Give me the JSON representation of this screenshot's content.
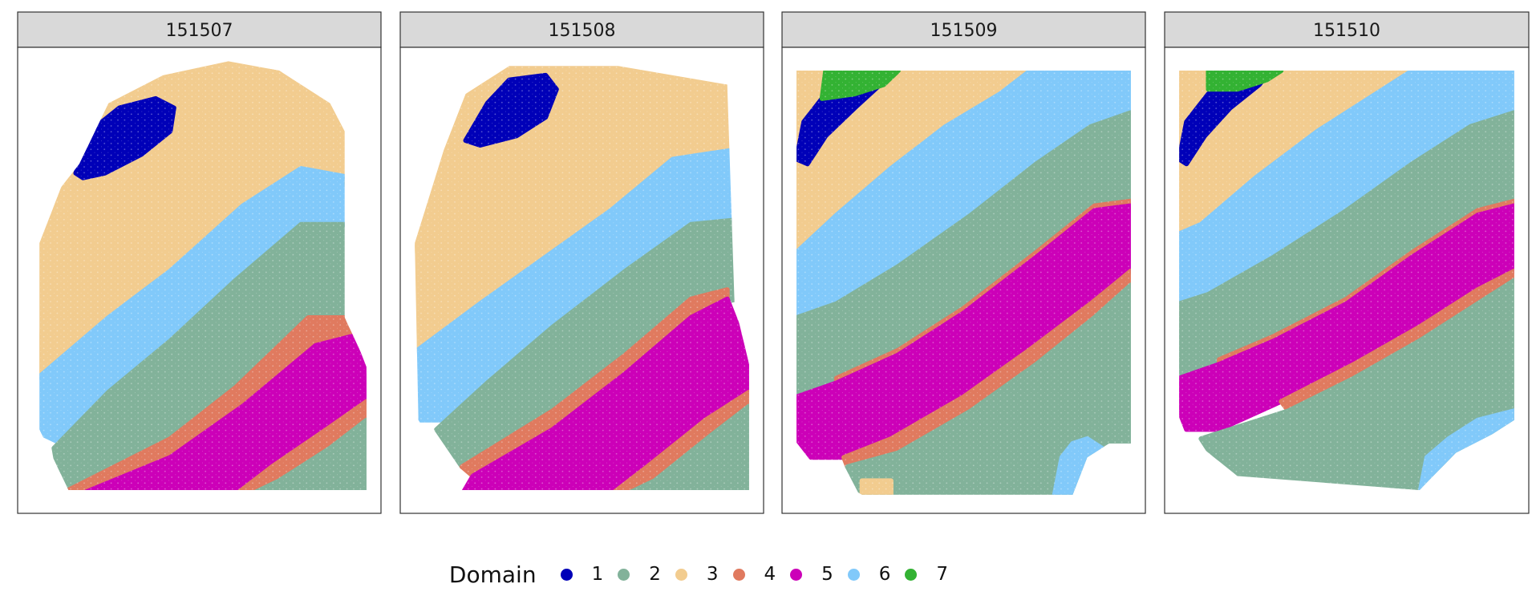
{
  "chart_data": {
    "type": "scatter",
    "description": "Spatial domain clusters of tissue spots, faceted by sample",
    "facets": [
      "151507",
      "151508",
      "151509",
      "151510"
    ],
    "legend": {
      "title": "Domain",
      "placement": "bottom",
      "entries": [
        {
          "label": "1",
          "color": "#0000B8"
        },
        {
          "label": "2",
          "color": "#82B29A"
        },
        {
          "label": "3",
          "color": "#F2CC8F"
        },
        {
          "label": "4",
          "color": "#E07A5F"
        },
        {
          "label": "5",
          "color": "#CC00B8"
        },
        {
          "label": "6",
          "color": "#81C9FA"
        },
        {
          "label": "7",
          "color": "#33B233"
        }
      ]
    },
    "grid": false,
    "facet_strip_color": "#D9D9D9",
    "panel_border_color": "#333333"
  }
}
